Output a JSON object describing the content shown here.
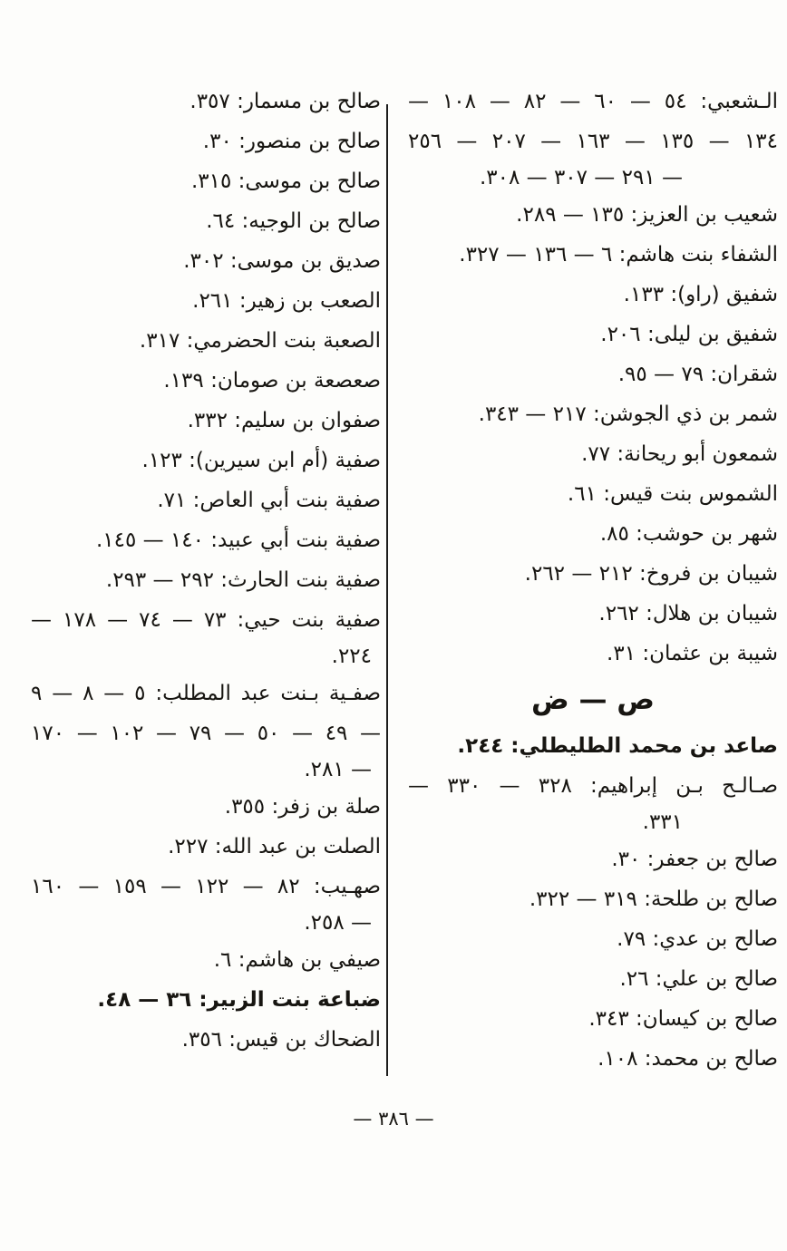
{
  "page": {
    "footer_page_number": "— ٣٨٦ —"
  },
  "index": {
    "columns": [
      {
        "side": "right",
        "lines": [
          {
            "text": "الـشعبي: ٥٤ — ٦٠ — ٨٢ — ١٠٨ —",
            "style": "justify"
          },
          {
            "text": "١٣٤ — ١٣٥ — ١٦٣ — ٢٠٧ — ٢٥٦",
            "style": "justify"
          },
          {
            "text": "— ٢٩١ — ٣٠٧ — ٣٠٨.",
            "style": "end-deep"
          },
          {
            "text": "شعيب بن العزيز: ١٣٥ — ٢٨٩.",
            "style": ""
          },
          {
            "text": "الشفاء بنت هاشم: ٦ — ١٣٦ — ٣٢٧.",
            "style": ""
          },
          {
            "text": "شفيق (راو): ١٣٣.",
            "style": ""
          },
          {
            "text": "شفيق بن ليلى: ٢٠٦.",
            "style": ""
          },
          {
            "text": "شقران: ٧٩ — ٩٥.",
            "style": ""
          },
          {
            "text": "شمر بن ذي الجوشن: ٢١٧ — ٣٤٣.",
            "style": ""
          },
          {
            "text": "شمعون أبو ريحانة: ٧٧.",
            "style": ""
          },
          {
            "text": "الشموس بنت قيس: ٦١.",
            "style": ""
          },
          {
            "text": "شهر بن حوشب: ٨٥.",
            "style": ""
          },
          {
            "text": "شيبان بن فروخ: ٢١٢ — ٢٦٢.",
            "style": ""
          },
          {
            "text": "شيبان بن هلال: ٢٦٢.",
            "style": ""
          },
          {
            "text": "شيبة بن عثمان: ٣١.",
            "style": ""
          },
          {
            "text": "ص — ض",
            "style": "header"
          },
          {
            "text": "صاعد بن محمد الطليطلي: ٢٤٤.",
            "style": "bold"
          },
          {
            "text": "صـالـح بـن إبراهيم: ٣٢٨ — ٣٣٠ —",
            "style": "justify"
          },
          {
            "text": "٣٣١.",
            "style": "end-deep"
          },
          {
            "text": "صالح بن جعفر: ٣٠.",
            "style": ""
          },
          {
            "text": "صالح بن طلحة: ٣١٩ — ٣٢٢.",
            "style": ""
          },
          {
            "text": "صالح بن عدي: ٧٩.",
            "style": ""
          },
          {
            "text": "صالح بن علي: ٢٦.",
            "style": ""
          },
          {
            "text": "صالح بن كيسان: ٣٤٣.",
            "style": ""
          },
          {
            "text": "صالح بن محمد: ١٠٨.",
            "style": ""
          }
        ]
      },
      {
        "side": "left",
        "lines": [
          {
            "text": "صالح بن مسمار: ٣٥٧.",
            "style": ""
          },
          {
            "text": "صالح بن منصور: ٣٠.",
            "style": ""
          },
          {
            "text": "صالح بن موسى: ٣١٥.",
            "style": ""
          },
          {
            "text": "صالح بن الوجيه: ٦٤.",
            "style": ""
          },
          {
            "text": "صديق بن موسى: ٣٠٢.",
            "style": ""
          },
          {
            "text": "الصعب بن زهير: ٢٦١.",
            "style": ""
          },
          {
            "text": "الصعبة بنت الحضرمي: ٣١٧.",
            "style": ""
          },
          {
            "text": "صعصعة بن صومان: ١٣٩.",
            "style": ""
          },
          {
            "text": "صفوان بن سليم: ٣٣٢.",
            "style": ""
          },
          {
            "text": "صفية (أم ابن سيرين): ١٢٣.",
            "style": ""
          },
          {
            "text": "صفية بنت أبي العاص: ٧١.",
            "style": ""
          },
          {
            "text": "صفية بنت أبي عبيد: ١٤٠ — ١٤٥.",
            "style": ""
          },
          {
            "text": "صفية بنت الحارث: ٢٩٢ — ٢٩٣.",
            "style": ""
          },
          {
            "text": "صفية بنت حيي: ٧٣ — ٧٤ — ١٧٨ —",
            "style": "justify"
          },
          {
            "text": "٢٢٤.",
            "style": "end"
          },
          {
            "text": "صفـية بـنت عبد المطلب: ٥ — ٨ — ٩",
            "style": "justify"
          },
          {
            "text": "— ٤٩ — ٥٠ — ٧٩ — ١٠٢ — ١٧٠",
            "style": "justify"
          },
          {
            "text": "— ٢٨١.",
            "style": "end"
          },
          {
            "text": "صلة بن زفر: ٣٥٥.",
            "style": ""
          },
          {
            "text": "الصلت بن عبد الله: ٢٢٧.",
            "style": ""
          },
          {
            "text": "صهـيب: ٨٢ — ١٢٢ — ١٥٩ — ١٦٠",
            "style": "justify"
          },
          {
            "text": "— ٢٥٨.",
            "style": "end"
          },
          {
            "text": "صيفي بن هاشم: ٦.",
            "style": ""
          },
          {
            "text": "ضباعة بنت الزبير: ٣٦ — ٤٨.",
            "style": "bold"
          },
          {
            "text": "الضحاك بن قيس: ٣٥٦.",
            "style": ""
          }
        ]
      }
    ]
  }
}
